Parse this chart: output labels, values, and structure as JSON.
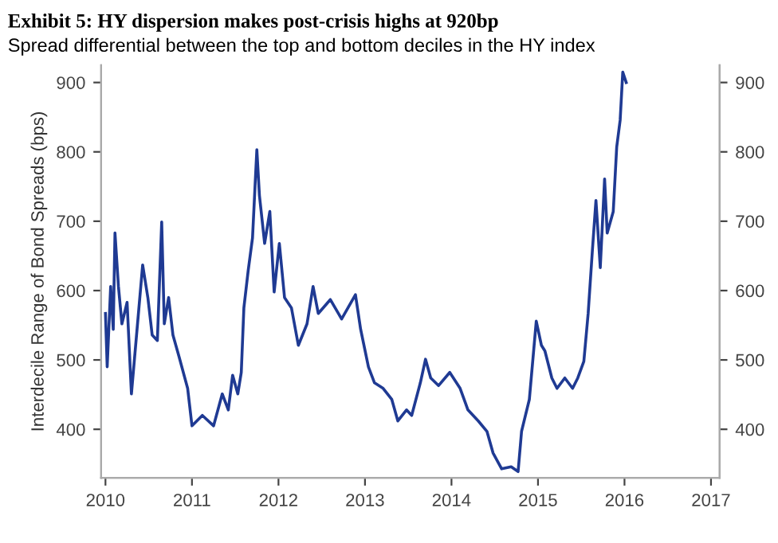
{
  "chart_data": {
    "type": "line",
    "title": "Exhibit 5: HY dispersion makes post-crisis highs at 920bp",
    "subtitle": "Spread differential between the top and bottom deciles in the HY index",
    "ylabel": "Interdecile Range of Bond Spreads (bps)",
    "xlim": [
      2009.95,
      2017.1
    ],
    "xticks": [
      2010,
      2011,
      2012,
      2013,
      2014,
      2015,
      2016,
      2017
    ],
    "ylim": [
      330,
      925
    ],
    "yticks": [
      400,
      500,
      600,
      700,
      800,
      900
    ],
    "y2lim": [
      330,
      925
    ],
    "y2ticks": [
      400,
      500,
      600,
      700,
      800,
      900
    ],
    "grid": false,
    "line_style": "solid",
    "series": [
      {
        "color": "#1f3a93",
        "x": [
          2010.0,
          2010.02,
          2010.06,
          2010.09,
          2010.11,
          2010.15,
          2010.19,
          2010.25,
          2010.3,
          2010.43,
          2010.49,
          2010.54,
          2010.6,
          2010.65,
          2010.68,
          2010.73,
          2010.78,
          2010.85,
          2010.95,
          2011.0,
          2011.12,
          2011.25,
          2011.35,
          2011.42,
          2011.47,
          2011.53,
          2011.57,
          2011.6,
          2011.65,
          2011.7,
          2011.73,
          2011.75,
          2011.78,
          2011.84,
          2011.9,
          2011.95,
          2012.01,
          2012.07,
          2012.15,
          2012.23,
          2012.33,
          2012.4,
          2012.46,
          2012.6,
          2012.73,
          2012.89,
          2012.95,
          2013.04,
          2013.11,
          2013.21,
          2013.31,
          2013.38,
          2013.48,
          2013.54,
          2013.64,
          2013.7,
          2013.76,
          2013.85,
          2013.98,
          2014.1,
          2014.19,
          2014.31,
          2014.41,
          2014.48,
          2014.58,
          2014.69,
          2014.77,
          2014.81,
          2014.9,
          2014.98,
          2015.04,
          2015.08,
          2015.16,
          2015.22,
          2015.31,
          2015.4,
          2015.46,
          2015.53,
          2015.58,
          2015.63,
          2015.67,
          2015.72,
          2015.77,
          2015.8,
          2015.87,
          2015.91,
          2015.95,
          2015.98,
          2016.02
        ],
        "values": [
          567,
          490,
          606,
          544,
          683,
          606,
          552,
          583,
          451,
          637,
          590,
          536,
          528,
          699,
          552,
          590,
          536,
          505,
          459,
          405,
          420,
          405,
          451,
          428,
          478,
          451,
          482,
          575,
          629,
          676,
          753,
          803,
          737,
          668,
          714,
          598,
          668,
          590,
          575,
          521,
          552,
          606,
          567,
          587,
          559,
          594,
          544,
          490,
          467,
          459,
          443,
          412,
          428,
          420,
          467,
          501,
          474,
          463,
          482,
          459,
          428,
          412,
          397,
          366,
          343,
          346,
          339,
          397,
          443,
          556,
          521,
          513,
          474,
          459,
          474,
          459,
          474,
          498,
          567,
          660,
          730,
          633,
          761,
          683,
          714,
          807,
          846,
          915,
          900
        ]
      }
    ]
  }
}
